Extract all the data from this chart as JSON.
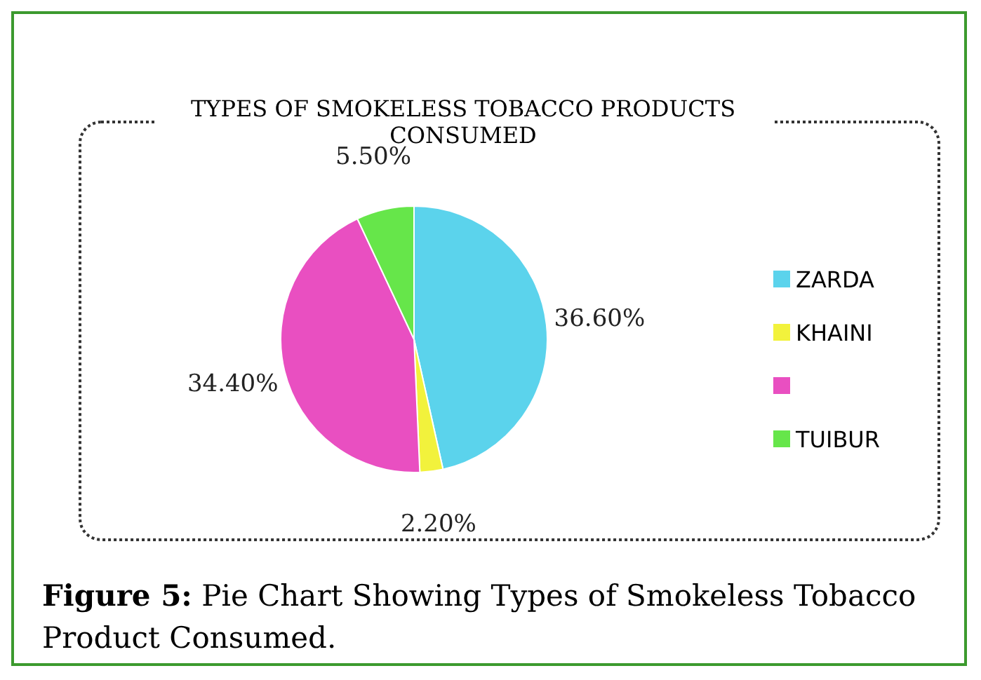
{
  "chart_data": {
    "type": "pie",
    "title": "TYPES OF SMOKELESS TOBACCO PRODUCTS CONSUMED",
    "categories": [
      "ZARDA",
      "KHAINI",
      null,
      "TUIBUR"
    ],
    "values": [
      36.6,
      2.2,
      34.4,
      5.5
    ],
    "value_labels": [
      "36.60%",
      "2.20%",
      "34.40%",
      "5.50%"
    ],
    "colors": [
      "#5bd3ec",
      "#f2f23c",
      "#e94fc1",
      "#66e64a"
    ],
    "legend": "right",
    "annotations": [
      "Figure 5: Pie Chart Showing Types of Smokeless Tobacco Product Consumed."
    ]
  }
}
